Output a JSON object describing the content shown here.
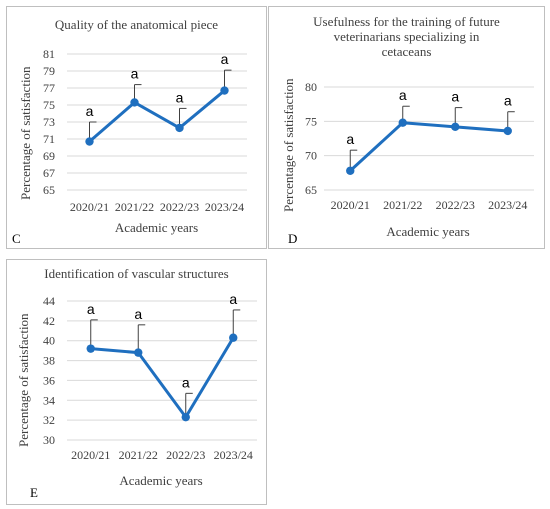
{
  "chart_data": [
    {
      "id": "C",
      "type": "line",
      "panel_letter": "C",
      "title": "Quality of the anatomical piece",
      "xlabel": "Academic years",
      "ylabel": "Percentage of satisfaction",
      "categories": [
        "2020/21",
        "2021/22",
        "2022/23",
        "2023/24"
      ],
      "values": [
        70.7,
        75.3,
        72.3,
        76.7
      ],
      "error_upper": [
        73.0,
        77.4,
        74.6,
        79.1
      ],
      "annotations": [
        "a",
        "a",
        "a",
        "a"
      ],
      "ylim": [
        65,
        81
      ],
      "yticks": [
        65,
        67,
        69,
        71,
        73,
        75,
        77,
        79,
        81
      ],
      "grid": true,
      "color": "#1f6fbf"
    },
    {
      "id": "D",
      "type": "line",
      "panel_letter": "D",
      "title": "Usefulness for the training of future\nveterinarians specializing in\ncetaceans",
      "xlabel": "Academic years",
      "ylabel": "Percentage of satisfaction",
      "categories": [
        "2020/21",
        "2021/22",
        "2022/23",
        "2023/24"
      ],
      "values": [
        67.8,
        74.8,
        74.2,
        73.6
      ],
      "error_upper": [
        70.8,
        77.2,
        77.0,
        76.4
      ],
      "annotations": [
        "a",
        "a",
        "a",
        "a"
      ],
      "ylim": [
        65,
        80
      ],
      "yticks": [
        65,
        70,
        75,
        80
      ],
      "grid": true,
      "color": "#1f6fbf"
    },
    {
      "id": "E",
      "type": "line",
      "panel_letter": "E",
      "title": "Identification of vascular structures",
      "xlabel": "Academic years",
      "ylabel": "Percentage of satisfaction",
      "categories": [
        "2020/21",
        "2021/22",
        "2022/23",
        "2023/24"
      ],
      "values": [
        39.2,
        38.8,
        32.3,
        40.3
      ],
      "error_upper": [
        42.1,
        41.6,
        34.7,
        43.1
      ],
      "annotations": [
        "a",
        "a",
        "a",
        "a"
      ],
      "ylim": [
        30,
        44
      ],
      "yticks": [
        30,
        32,
        34,
        36,
        38,
        40,
        42,
        44
      ],
      "grid": true,
      "color": "#1f6fbf"
    }
  ]
}
